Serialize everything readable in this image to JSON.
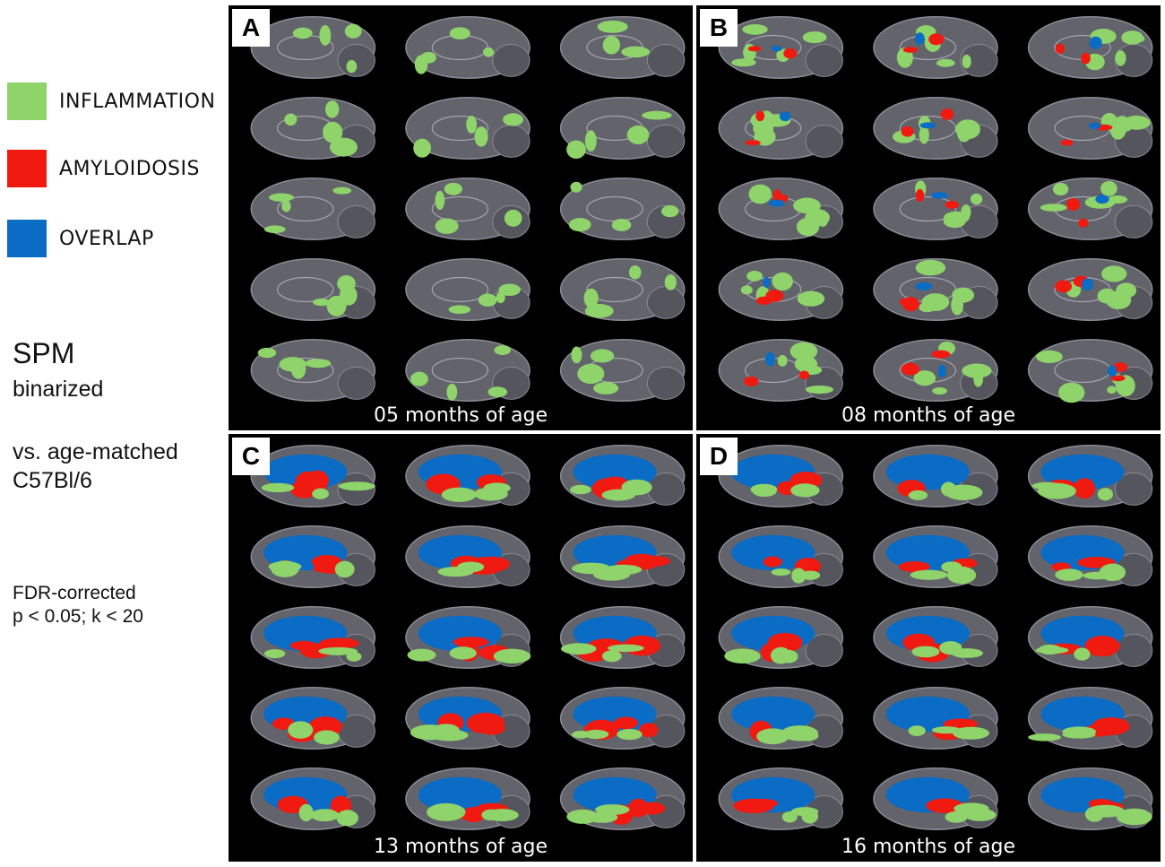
{
  "legend": {
    "items": [
      {
        "label": "INFLAMMATION",
        "color": "#8ed46a"
      },
      {
        "label": "AMYLOIDOSIS",
        "color": "#f01a10"
      },
      {
        "label": "OVERLAP",
        "color": "#0a6cc4"
      }
    ]
  },
  "side": {
    "spm": "SPM",
    "binarized": "binarized",
    "vs_line1": "vs. age-matched",
    "vs_line2": "C57Bl/6",
    "fdr_line1": "FDR-corrected",
    "fdr_line2": "p < 0.05; k < 20"
  },
  "panels": [
    {
      "letter": "A",
      "caption": "05 months of age",
      "level": "low"
    },
    {
      "letter": "B",
      "caption": "08 months of age",
      "level": "mid"
    },
    {
      "letter": "C",
      "caption": "13 months of age",
      "level": "high"
    },
    {
      "letter": "D",
      "caption": "16 months of age",
      "level": "max"
    }
  ],
  "colors": {
    "inflammation": "#8ed46a",
    "amyloidosis": "#f01a10",
    "overlap": "#0a6cc4",
    "tissue": "#6e6e78",
    "background": "#000000"
  }
}
